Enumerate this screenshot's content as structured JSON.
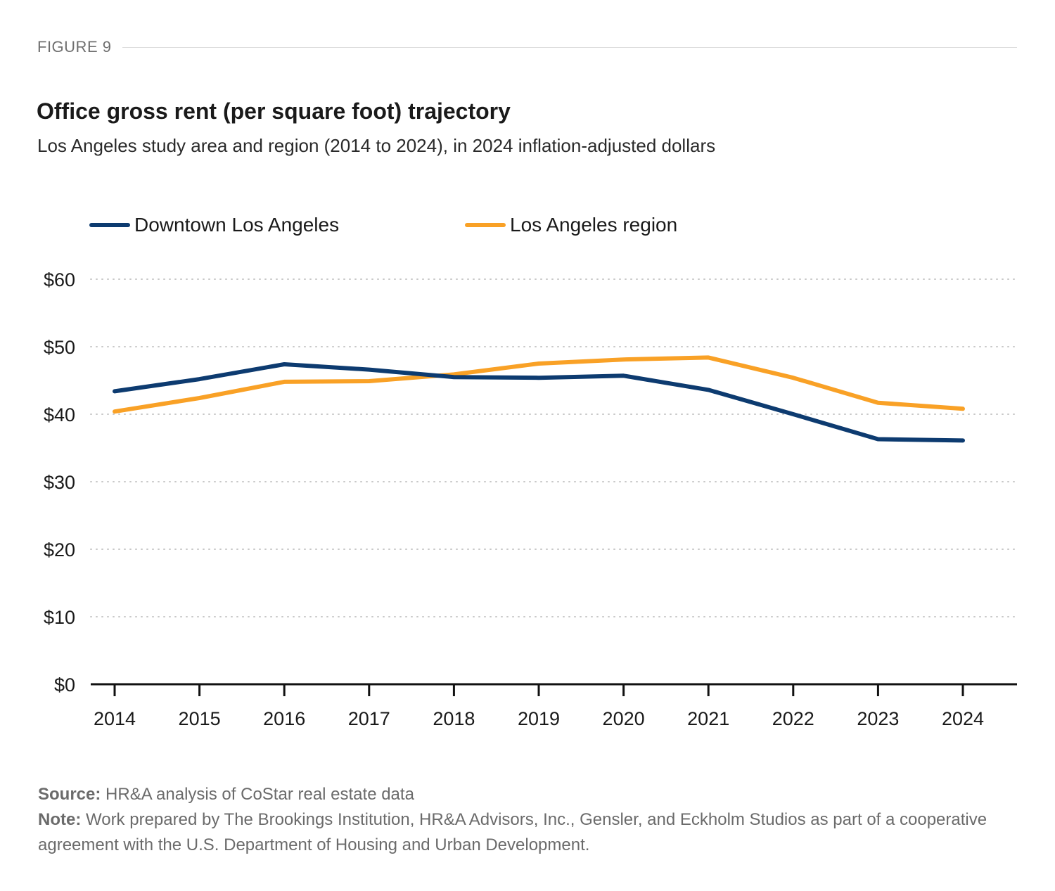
{
  "figure_label": "FIGURE 9",
  "title": "Office gross rent (per square foot) trajectory",
  "subtitle": "Los Angeles study area and region (2014 to 2024), in 2024 inflation-adjusted dollars",
  "legend": [
    {
      "name": "Downtown Los Angeles",
      "color": "#0d3b70"
    },
    {
      "name": "Los Angeles region",
      "color": "#f9a126"
    }
  ],
  "footer": {
    "source_label": "Source:",
    "source_text": "HR&A analysis of CoStar real estate data",
    "note_label": "Note:",
    "note_text": "Work prepared by The Brookings Institution, HR&A Advisors, Inc., Gensler, and Eckholm Studios as part of a cooperative agreement with the U.S. Department of Housing and Urban Development."
  },
  "chart_data": {
    "type": "line",
    "title": "Office gross rent (per square foot) trajectory",
    "subtitle": "Los Angeles study area and region (2014 to 2024), in 2024 inflation-adjusted dollars",
    "xlabel": "",
    "ylabel": "",
    "x": [
      "2014",
      "2015",
      "2016",
      "2017",
      "2018",
      "2019",
      "2020",
      "2021",
      "2022",
      "2023",
      "2024"
    ],
    "ylim": [
      0,
      60
    ],
    "yticks": [
      0,
      10,
      20,
      30,
      40,
      50,
      60
    ],
    "ytick_labels": [
      "$0",
      "$10",
      "$20",
      "$30",
      "$40",
      "$50",
      "$60"
    ],
    "grid": "horizontal dotted",
    "legend_position": "top-left",
    "series": [
      {
        "name": "Downtown Los Angeles",
        "color": "#0d3b70",
        "values": [
          43.4,
          45.2,
          47.4,
          46.6,
          45.5,
          45.4,
          45.7,
          43.6,
          40.0,
          36.3,
          36.1
        ]
      },
      {
        "name": "Los Angeles region",
        "color": "#f9a126",
        "values": [
          40.4,
          42.4,
          44.8,
          44.9,
          45.9,
          47.5,
          48.1,
          48.4,
          45.4,
          41.7,
          40.8
        ]
      }
    ]
  }
}
